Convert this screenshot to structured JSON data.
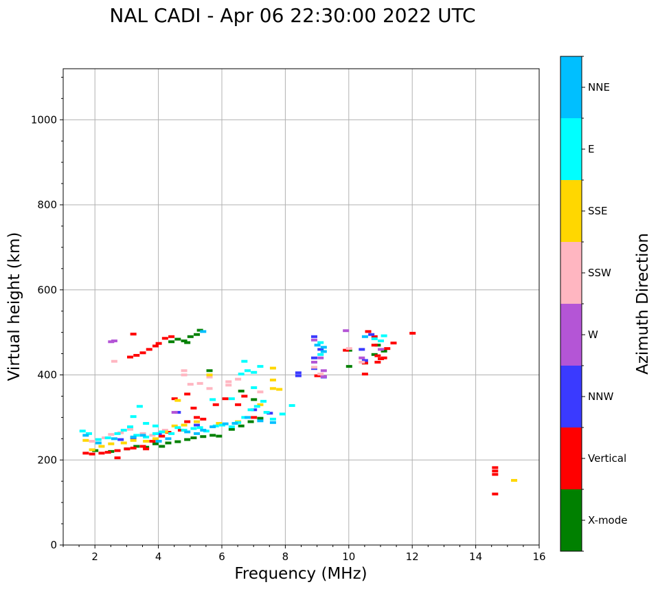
{
  "chart_data": {
    "type": "scatter",
    "title": "NAL CADI - Apr 06 22:30:00 2022 UTC",
    "xlabel": "Frequency (MHz)",
    "ylabel": "Virtual height (km)",
    "xlim": [
      1,
      16
    ],
    "ylim": [
      0,
      1120
    ],
    "xticks": [
      2,
      4,
      6,
      8,
      10,
      12,
      14,
      16
    ],
    "yticks": [
      0,
      200,
      400,
      600,
      800,
      1000
    ],
    "grid": true,
    "colorbar": {
      "label": "Azimuth Direction",
      "categories": [
        {
          "name": "X-mode",
          "color": "#008000"
        },
        {
          "name": "Vertical",
          "color": "#ff0000"
        },
        {
          "name": "NNW",
          "color": "#3a3aff"
        },
        {
          "name": "W",
          "color": "#b455d6"
        },
        {
          "name": "SSW",
          "color": "#ffb6c1"
        },
        {
          "name": "SSE",
          "color": "#ffd700"
        },
        {
          "name": "E",
          "color": "#00ffff"
        },
        {
          "name": "NNE",
          "color": "#00bfff"
        }
      ]
    },
    "series": [
      {
        "name": "X-mode",
        "points": [
          [
            2.0,
            222
          ],
          [
            2.5,
            220
          ],
          [
            3.0,
            226
          ],
          [
            3.3,
            232
          ],
          [
            3.6,
            230
          ],
          [
            3.9,
            238
          ],
          [
            4.1,
            232
          ],
          [
            4.3,
            240
          ],
          [
            4.6,
            243
          ],
          [
            4.9,
            248
          ],
          [
            5.1,
            252
          ],
          [
            5.4,
            255
          ],
          [
            5.7,
            258
          ],
          [
            5.9,
            256
          ],
          [
            6.3,
            272
          ],
          [
            6.6,
            280
          ],
          [
            6.9,
            290
          ],
          [
            7.2,
            298
          ],
          [
            5.6,
            410
          ],
          [
            6.6,
            362
          ],
          [
            7.0,
            342
          ],
          [
            4.4,
            478
          ],
          [
            4.6,
            484
          ],
          [
            4.8,
            480
          ],
          [
            5.0,
            490
          ],
          [
            5.2,
            495
          ],
          [
            5.3,
            505
          ],
          [
            4.9,
            476
          ],
          [
            10.0,
            420
          ],
          [
            10.0,
            458
          ],
          [
            10.5,
            428
          ],
          [
            10.8,
            448
          ],
          [
            11.1,
            456
          ],
          [
            10.9,
            470
          ]
        ]
      },
      {
        "name": "Vertical",
        "points": [
          [
            1.7,
            216
          ],
          [
            1.9,
            214
          ],
          [
            2.2,
            216
          ],
          [
            2.4,
            218
          ],
          [
            2.7,
            222
          ],
          [
            3.0,
            226
          ],
          [
            3.2,
            228
          ],
          [
            3.5,
            232
          ],
          [
            3.8,
            244
          ],
          [
            4.1,
            256
          ],
          [
            4.3,
            265
          ],
          [
            4.7,
            270
          ],
          [
            4.9,
            290
          ],
          [
            5.2,
            300
          ],
          [
            5.4,
            296
          ],
          [
            5.8,
            330
          ],
          [
            6.1,
            344
          ],
          [
            6.7,
            350
          ],
          [
            4.5,
            344
          ],
          [
            4.9,
            355
          ],
          [
            5.1,
            322
          ],
          [
            3.1,
            442
          ],
          [
            3.3,
            446
          ],
          [
            3.5,
            452
          ],
          [
            3.7,
            460
          ],
          [
            3.9,
            468
          ],
          [
            4.0,
            474
          ],
          [
            4.2,
            486
          ],
          [
            4.4,
            490
          ],
          [
            9.0,
            398
          ],
          [
            9.9,
            458
          ],
          [
            10.5,
            402
          ],
          [
            10.5,
            428
          ],
          [
            10.6,
            502
          ],
          [
            10.8,
            470
          ],
          [
            10.8,
            490
          ],
          [
            10.9,
            445
          ],
          [
            11.0,
            438
          ],
          [
            11.1,
            440
          ],
          [
            11.2,
            462
          ],
          [
            11.4,
            475
          ],
          [
            10.9,
            430
          ],
          [
            12.0,
            498
          ],
          [
            14.6,
            182
          ],
          [
            14.6,
            174
          ],
          [
            14.6,
            166
          ],
          [
            14.6,
            120
          ],
          [
            3.2,
            496
          ],
          [
            2.7,
            205
          ],
          [
            6.5,
            330
          ],
          [
            7.0,
            300
          ],
          [
            3.6,
            226
          ]
        ]
      },
      {
        "name": "NNW",
        "points": [
          [
            2.8,
            248
          ],
          [
            3.2,
            252
          ],
          [
            4.0,
            262
          ],
          [
            4.6,
            312
          ],
          [
            5.2,
            282
          ],
          [
            7.0,
            318
          ],
          [
            7.5,
            310
          ],
          [
            8.4,
            405
          ],
          [
            8.4,
            398
          ],
          [
            8.9,
            490
          ],
          [
            8.9,
            440
          ],
          [
            8.9,
            415
          ],
          [
            9.1,
            460
          ],
          [
            9.2,
            395
          ],
          [
            10.5,
            434
          ],
          [
            10.4,
            460
          ],
          [
            10.7,
            495
          ]
        ]
      },
      {
        "name": "W",
        "points": [
          [
            2.5,
            478
          ],
          [
            2.6,
            480
          ],
          [
            4.5,
            312
          ],
          [
            8.9,
            482
          ],
          [
            8.9,
            430
          ],
          [
            9.1,
            440
          ],
          [
            9.2,
            410
          ],
          [
            9.2,
            396
          ],
          [
            9.9,
            504
          ],
          [
            10.4,
            440
          ],
          [
            11.0,
            460
          ]
        ]
      },
      {
        "name": "SSW",
        "points": [
          [
            1.9,
            244
          ],
          [
            2.3,
            252
          ],
          [
            2.5,
            260
          ],
          [
            2.8,
            264
          ],
          [
            3.1,
            272
          ],
          [
            3.5,
            262
          ],
          [
            3.8,
            258
          ],
          [
            4.2,
            270
          ],
          [
            4.8,
            410
          ],
          [
            4.8,
            400
          ],
          [
            5.0,
            378
          ],
          [
            5.3,
            380
          ],
          [
            5.6,
            395
          ],
          [
            5.6,
            368
          ],
          [
            6.2,
            384
          ],
          [
            6.2,
            376
          ],
          [
            6.5,
            390
          ],
          [
            7.2,
            360
          ],
          [
            2.6,
            432
          ],
          [
            8.9,
            418
          ],
          [
            9.1,
            402
          ],
          [
            10.0,
            462
          ],
          [
            10.4,
            430
          ]
        ]
      },
      {
        "name": "SSE",
        "points": [
          [
            1.7,
            246
          ],
          [
            1.9,
            224
          ],
          [
            2.2,
            232
          ],
          [
            2.5,
            238
          ],
          [
            2.9,
            240
          ],
          [
            3.2,
            246
          ],
          [
            3.6,
            244
          ],
          [
            3.9,
            250
          ],
          [
            4.2,
            266
          ],
          [
            4.5,
            280
          ],
          [
            4.8,
            282
          ],
          [
            5.2,
            290
          ],
          [
            5.6,
            400
          ],
          [
            5.9,
            286
          ],
          [
            6.5,
            290
          ],
          [
            7.2,
            330
          ],
          [
            7.6,
            388
          ],
          [
            7.6,
            416
          ],
          [
            7.6,
            368
          ],
          [
            7.8,
            366
          ],
          [
            15.2,
            152
          ],
          [
            4.6,
            340
          ]
        ]
      },
      {
        "name": "E",
        "points": [
          [
            1.6,
            268
          ],
          [
            1.8,
            262
          ],
          [
            2.1,
            248
          ],
          [
            2.4,
            252
          ],
          [
            2.7,
            262
          ],
          [
            2.9,
            270
          ],
          [
            3.1,
            278
          ],
          [
            3.3,
            258
          ],
          [
            3.6,
            254
          ],
          [
            3.9,
            262
          ],
          [
            4.1,
            266
          ],
          [
            4.4,
            262
          ],
          [
            4.6,
            276
          ],
          [
            4.8,
            270
          ],
          [
            5.1,
            274
          ],
          [
            5.3,
            276
          ],
          [
            5.5,
            268
          ],
          [
            5.8,
            280
          ],
          [
            6.0,
            282
          ],
          [
            6.3,
            278
          ],
          [
            6.5,
            288
          ],
          [
            6.7,
            300
          ],
          [
            6.9,
            318
          ],
          [
            7.1,
            326
          ],
          [
            7.3,
            338
          ],
          [
            7.6,
            296
          ],
          [
            7.9,
            308
          ],
          [
            8.2,
            328
          ],
          [
            6.6,
            402
          ],
          [
            6.8,
            410
          ],
          [
            7.0,
            406
          ],
          [
            7.2,
            420
          ],
          [
            6.7,
            432
          ],
          [
            9.1,
            476
          ],
          [
            9.1,
            448
          ],
          [
            10.8,
            485
          ],
          [
            11.1,
            492
          ],
          [
            11.0,
            480
          ],
          [
            3.2,
            302
          ],
          [
            3.4,
            326
          ],
          [
            3.6,
            286
          ],
          [
            3.9,
            280
          ],
          [
            5.7,
            342
          ],
          [
            6.3,
            344
          ],
          [
            7.0,
            370
          ],
          [
            7.4,
            312
          ]
        ]
      },
      {
        "name": "NNE",
        "points": [
          [
            1.7,
            258
          ],
          [
            2.1,
            240
          ],
          [
            2.6,
            250
          ],
          [
            3.2,
            254
          ],
          [
            3.5,
            258
          ],
          [
            4.0,
            244
          ],
          [
            4.3,
            250
          ],
          [
            4.9,
            266
          ],
          [
            5.2,
            262
          ],
          [
            5.4,
            270
          ],
          [
            5.7,
            278
          ],
          [
            6.1,
            285
          ],
          [
            6.4,
            286
          ],
          [
            6.8,
            300
          ],
          [
            7.2,
            292
          ],
          [
            7.6,
            288
          ],
          [
            5.4,
            502
          ],
          [
            9.0,
            470
          ],
          [
            9.2,
            465
          ],
          [
            9.2,
            455
          ],
          [
            10.5,
            490
          ]
        ]
      }
    ]
  }
}
